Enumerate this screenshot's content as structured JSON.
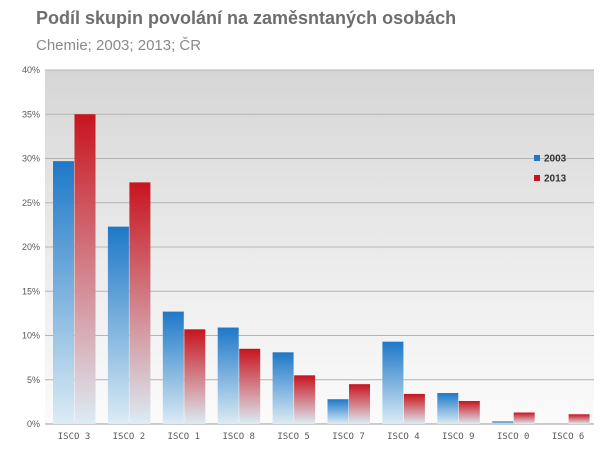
{
  "chart_data": {
    "type": "bar",
    "title": "Podíl skupin povolání na zaměsntaných osobách",
    "subtitle": "Chemie; 2003; 2013; ČR",
    "categories": [
      "ISCO 3",
      "ISCO 2",
      "ISCO 1",
      "ISCO 8",
      "ISCO 5",
      "ISCO 7",
      "ISCO 4",
      "ISCO 9",
      "ISCO 0",
      "ISCO 6"
    ],
    "series": [
      {
        "name": "2003",
        "values": [
          29.7,
          22.3,
          12.7,
          10.9,
          8.1,
          2.8,
          9.3,
          3.5,
          0.3,
          0.0
        ],
        "color": "#1e78c8"
      },
      {
        "name": "2013",
        "values": [
          35.0,
          27.3,
          10.7,
          8.5,
          5.5,
          4.5,
          3.4,
          2.6,
          1.3,
          1.1
        ],
        "color": "#c8141e"
      }
    ],
    "y_ticks": [
      "0%",
      "5%",
      "10%",
      "15%",
      "20%",
      "25%",
      "30%",
      "35%",
      "40%"
    ],
    "ylim": [
      0,
      40
    ],
    "y_unit": "%",
    "grid": true,
    "legend_position": "right"
  }
}
